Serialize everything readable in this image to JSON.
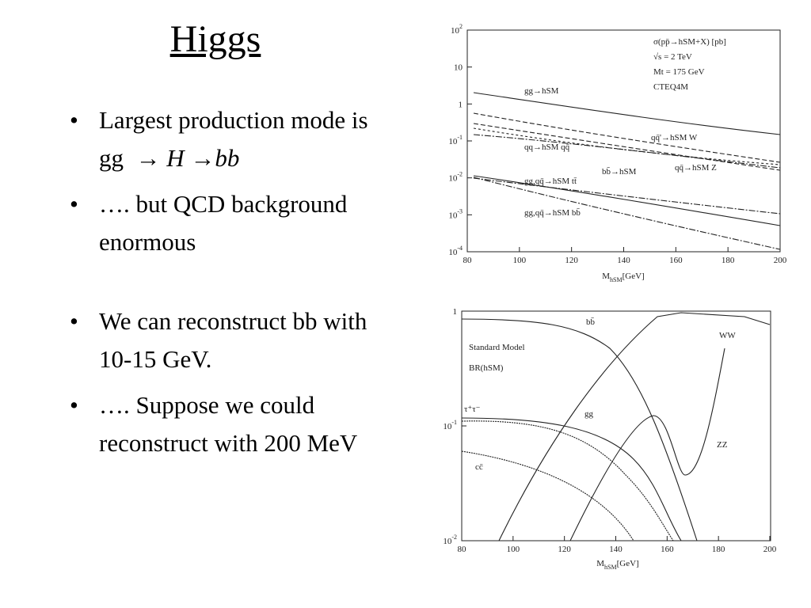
{
  "title": "Higgs",
  "bullets": [
    {
      "text": "Largest production mode is gg",
      "arrow1": "→",
      "H": "H",
      "arrow2": "→",
      "bb": "bb"
    },
    {
      "text": "…. but QCD background  enormous"
    },
    {
      "text": "We can reconstruct bb with 10-15 GeV."
    },
    {
      "text": "…. Suppose we could reconstruct with 200 MeV"
    }
  ],
  "figures": [
    {
      "y_tick_labels": [
        {
          "base": "10",
          "exp": "2"
        },
        {
          "base": "10"
        },
        {
          "base": "1"
        },
        {
          "base": "10",
          "exp": "-1"
        },
        {
          "base": "10",
          "exp": "-2"
        },
        {
          "base": "10",
          "exp": "-3"
        },
        {
          "base": "10",
          "exp": "-4"
        }
      ],
      "x_tick_labels": [
        "80",
        "100",
        "120",
        "140",
        "160",
        "180",
        "200"
      ],
      "x_label": {
        "main": "M",
        "sub": "hSM",
        "unit": "[GeV]"
      },
      "legend": [
        "σ(pp̄→hSM+X) [pb]",
        "√s = 2 TeV",
        "Mt = 175 GeV",
        "CTEQ4M"
      ],
      "curve_labels": [
        "gg→hSM",
        "qq̄'→hSM W",
        "qq→hSM qq̄",
        "bb̄→hSM",
        "qq̄→hSM Z",
        "gg,qq̄→hSM tt̄",
        "gg,qq̄→hSM bb̄"
      ]
    },
    {
      "y_tick_labels": [
        {
          "base": "1"
        },
        {
          "base": "10",
          "exp": "-1"
        },
        {
          "base": "10",
          "exp": "-2"
        }
      ],
      "x_tick_labels": [
        "80",
        "100",
        "120",
        "140",
        "160",
        "180",
        "200"
      ],
      "x_label": {
        "main": "M",
        "sub": "hSM",
        "unit": "[GeV]"
      },
      "legend": [
        "Standard Model",
        "BR(hSM)"
      ],
      "curve_labels": [
        "bb̄",
        "WW",
        "τ⁺τ⁻",
        "gg",
        "ZZ",
        "cc̄"
      ]
    }
  ]
}
